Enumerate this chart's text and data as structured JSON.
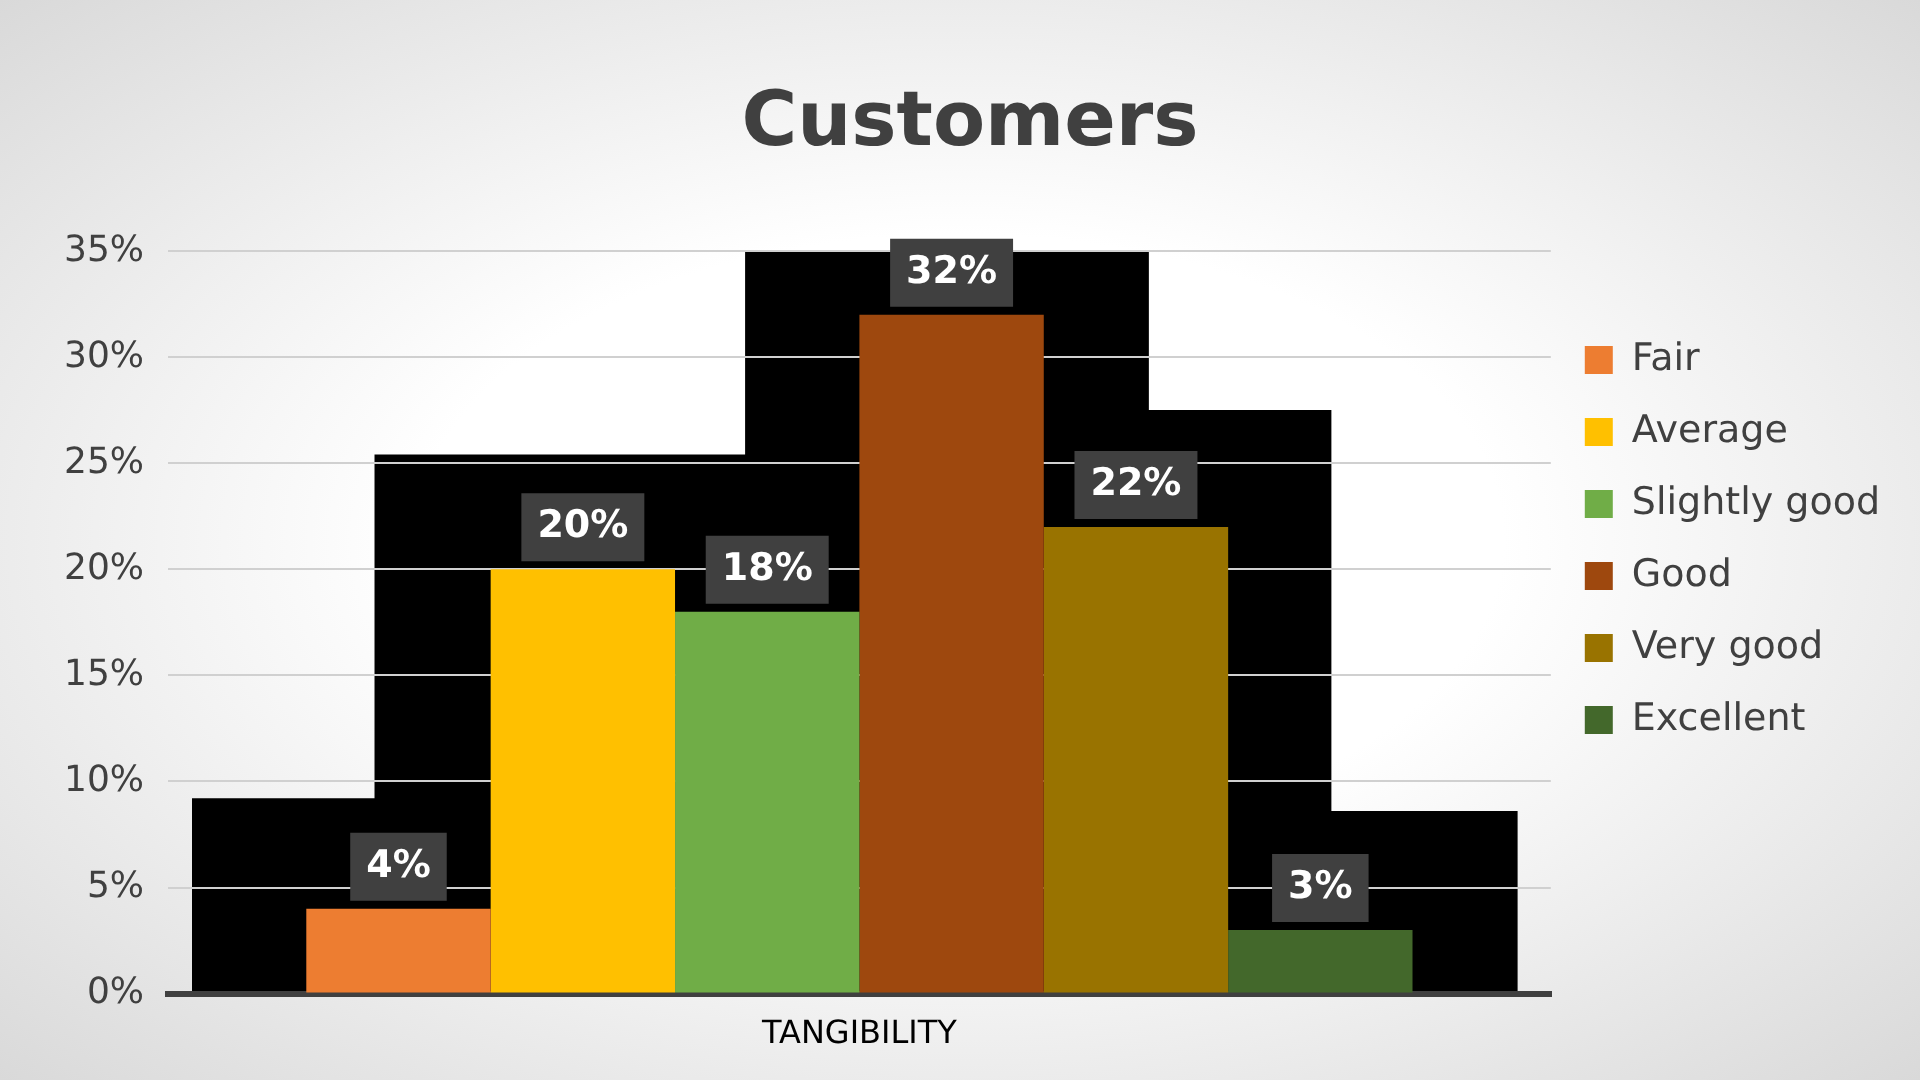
{
  "chart_data": {
    "type": "bar",
    "title": "Customers",
    "categories": [
      "TANGIBILITY"
    ],
    "series": [
      {
        "name": "Fair",
        "color": "#ed7d31",
        "values": [
          4
        ]
      },
      {
        "name": "Average",
        "color": "#ffc000",
        "values": [
          20
        ]
      },
      {
        "name": "Slightly good",
        "color": "#70ad47",
        "values": [
          18
        ]
      },
      {
        "name": "Good",
        "color": "#9e480e",
        "values": [
          32
        ]
      },
      {
        "name": "Very good",
        "color": "#997300",
        "values": [
          22
        ]
      },
      {
        "name": "Excellent",
        "color": "#43682b",
        "values": [
          3
        ]
      }
    ],
    "ylim": [
      0,
      35
    ],
    "yticks": [
      {
        "value": 0,
        "label": "0%"
      },
      {
        "value": 5,
        "label": "5%"
      },
      {
        "value": 10,
        "label": "10%"
      },
      {
        "value": 15,
        "label": "15%"
      },
      {
        "value": 20,
        "label": "20%"
      },
      {
        "value": 25,
        "label": "25%"
      },
      {
        "value": 30,
        "label": "30%"
      },
      {
        "value": 35,
        "label": "35%"
      }
    ],
    "value_labels": [
      "4%",
      "20%",
      "18%",
      "32%",
      "22%",
      "3%"
    ],
    "grid": "y",
    "legend": "right"
  }
}
